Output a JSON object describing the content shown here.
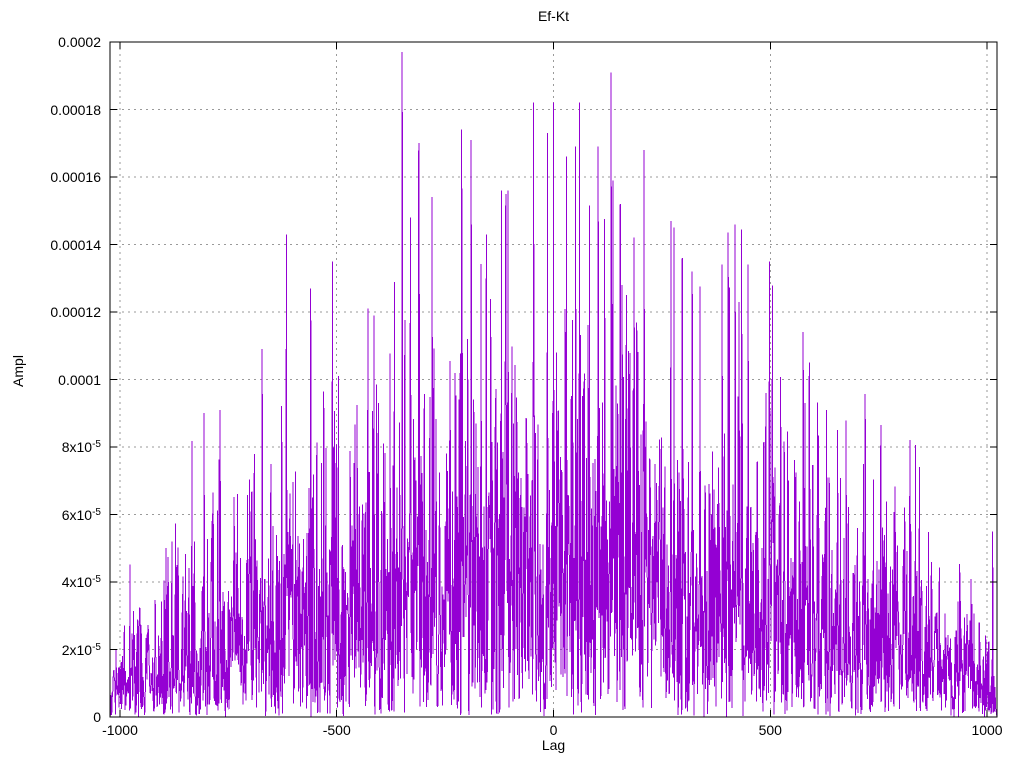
{
  "figure": {
    "background": "#ffffff",
    "text_color": "#000000"
  },
  "chart_data": {
    "type": "line",
    "title": "Ef-Kt",
    "xlabel": "Lag",
    "ylabel": "Ampl",
    "xlim": [
      -1023,
      1023
    ],
    "ylim": [
      0,
      0.0002
    ],
    "grid": true,
    "grid_color": "#9a9a9a",
    "border_color": "#000000",
    "legend_position": "none",
    "xticks": [
      {
        "v": -1000,
        "label": "-1000"
      },
      {
        "v": -500,
        "label": "-500"
      },
      {
        "v": 0,
        "label": "0"
      },
      {
        "v": 500,
        "label": "500"
      },
      {
        "v": 1000,
        "label": "1000"
      }
    ],
    "yticks": [
      {
        "v": 0,
        "label": "0",
        "sup": ""
      },
      {
        "v": 2e-05,
        "label": "2x10",
        "sup": "-5"
      },
      {
        "v": 4e-05,
        "label": "4x10",
        "sup": "-5"
      },
      {
        "v": 6e-05,
        "label": "6x10",
        "sup": "-5"
      },
      {
        "v": 8e-05,
        "label": "8x10",
        "sup": "-5"
      },
      {
        "v": 0.0001,
        "label": "0.0001",
        "sup": ""
      },
      {
        "v": 0.00012,
        "label": "0.00012",
        "sup": ""
      },
      {
        "v": 0.00014,
        "label": "0.00014",
        "sup": ""
      },
      {
        "v": 0.00016,
        "label": "0.00016",
        "sup": ""
      },
      {
        "v": 0.00018,
        "label": "0.00018",
        "sup": ""
      },
      {
        "v": 0.0002,
        "label": "0.0002",
        "sup": ""
      }
    ],
    "series": [
      {
        "name": "Ef-Kt",
        "color": "#9400d3",
        "style": "dense noisy line (impulse-like spikes), amplitude vs lag",
        "envelope": "noise amplitude rises from ~1.2e-5 at lag ±1000 to ~5.5e-5 at lag 0; isolated spikes up to ~2e-4 near center",
        "generator": {
          "seed": 7,
          "x_start": -1023,
          "x_end": 1023,
          "x_step": 1,
          "sigma_base": 4e-06,
          "sigma_peak": 5.1e-05,
          "half_width": 1024,
          "cap": 0.000195
        },
        "notable_peaks": [
          [
            -880,
            5.2e-05
          ],
          [
            -769,
            9.1e-05
          ],
          [
            -616,
            0.000143
          ],
          [
            -560,
            0.000127
          ],
          [
            -510,
            0.000135
          ],
          [
            -428,
            0.000121
          ],
          [
            -349,
            0.000197
          ],
          [
            -330,
            0.000148
          ],
          [
            -310,
            0.00017
          ],
          [
            -280,
            0.000154
          ],
          [
            -212,
            0.000174
          ],
          [
            -190,
            0.000171
          ],
          [
            -155,
            0.000143
          ],
          [
            -120,
            0.000156
          ],
          [
            -110,
            0.000155
          ],
          [
            -46,
            0.000182
          ],
          [
            0,
            0.000182
          ],
          [
            30,
            0.000166
          ],
          [
            51,
            0.000169
          ],
          [
            60,
            0.000182
          ],
          [
            103,
            0.000169
          ],
          [
            133,
            0.000191
          ],
          [
            154,
            0.000152
          ],
          [
            186,
            0.000142
          ],
          [
            209,
            0.000168
          ],
          [
            271,
            0.000147
          ],
          [
            278,
            0.000145
          ],
          [
            297,
            0.000136
          ],
          [
            320,
            0.000132
          ],
          [
            389,
            0.000134
          ],
          [
            428,
            0.000123
          ],
          [
            449,
            0.000134
          ],
          [
            498,
            0.000135
          ],
          [
            580,
            9.3e-05
          ],
          [
            630,
            9.1e-05
          ],
          [
            655,
            8.5e-05
          ],
          [
            715,
            7.5e-05
          ],
          [
            1013,
            5.5e-05
          ]
        ]
      }
    ]
  }
}
